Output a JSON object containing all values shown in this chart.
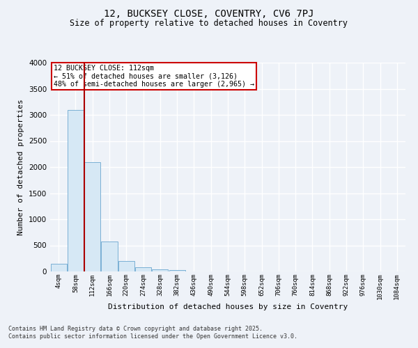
{
  "title": "12, BUCKSEY CLOSE, COVENTRY, CV6 7PJ",
  "subtitle": "Size of property relative to detached houses in Coventry",
  "xlabel": "Distribution of detached houses by size in Coventry",
  "ylabel": "Number of detached properties",
  "bin_labels": [
    "4sqm",
    "58sqm",
    "112sqm",
    "166sqm",
    "220sqm",
    "274sqm",
    "328sqm",
    "382sqm",
    "436sqm",
    "490sqm",
    "544sqm",
    "598sqm",
    "652sqm",
    "706sqm",
    "760sqm",
    "814sqm",
    "868sqm",
    "922sqm",
    "976sqm",
    "1030sqm",
    "1084sqm"
  ],
  "bar_values": [
    145,
    3100,
    2090,
    575,
    205,
    75,
    40,
    30,
    5,
    0,
    0,
    0,
    0,
    0,
    0,
    0,
    0,
    0,
    0,
    0,
    0
  ],
  "bar_color": "#d6e8f5",
  "bar_edge_color": "#7ab0d4",
  "vline_color": "#aa0000",
  "annotation_text": "12 BUCKSEY CLOSE: 112sqm\n← 51% of detached houses are smaller (3,126)\n48% of semi-detached houses are larger (2,965) →",
  "annotation_box_color": "#ffffff",
  "annotation_box_edge": "#cc0000",
  "ylim": [
    0,
    4000
  ],
  "yticks": [
    0,
    500,
    1000,
    1500,
    2000,
    2500,
    3000,
    3500,
    4000
  ],
  "footer_line1": "Contains HM Land Registry data © Crown copyright and database right 2025.",
  "footer_line2": "Contains public sector information licensed under the Open Government Licence v3.0.",
  "bg_color": "#eef2f8",
  "grid_color": "#ffffff",
  "title_fontsize": 10,
  "subtitle_fontsize": 8.5,
  "ylabel_fontsize": 8,
  "xlabel_fontsize": 8
}
